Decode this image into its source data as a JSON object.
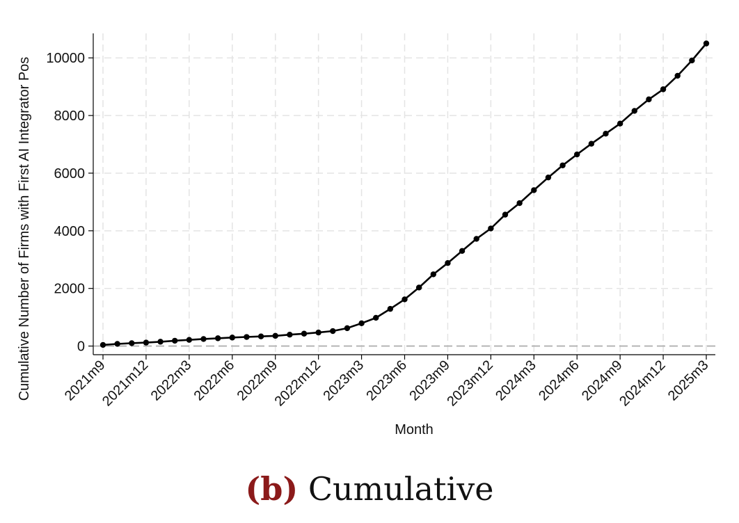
{
  "chart_data": {
    "type": "line",
    "title": "",
    "xlabel": "Month",
    "ylabel": "Cumulative Number of Firms with First AI Integrator Pos",
    "ylim": [
      -300,
      10850
    ],
    "yticks": [
      0,
      2000,
      4000,
      6000,
      8000,
      10000
    ],
    "reference_line": {
      "y": 0,
      "style": "dashed",
      "color": "#b0b0b0"
    },
    "grid": true,
    "legend": "none",
    "line_color": "#000000",
    "x": [
      "2021m9",
      "2021m10",
      "2021m11",
      "2021m12",
      "2022m1",
      "2022m2",
      "2022m3",
      "2022m4",
      "2022m5",
      "2022m6",
      "2022m7",
      "2022m8",
      "2022m9",
      "2022m10",
      "2022m11",
      "2022m12",
      "2023m1",
      "2023m2",
      "2023m3",
      "2023m4",
      "2023m5",
      "2023m6",
      "2023m7",
      "2023m8",
      "2023m9",
      "2023m10",
      "2023m11",
      "2023m12",
      "2024m1",
      "2024m2",
      "2024m3",
      "2024m4",
      "2024m5",
      "2024m6",
      "2024m7",
      "2024m8",
      "2024m9",
      "2024m10",
      "2024m11",
      "2024m12",
      "2025m1",
      "2025m2",
      "2025m3"
    ],
    "x_tick_labels": [
      "2021m9",
      "2021m12",
      "2022m3",
      "2022m6",
      "2022m9",
      "2022m12",
      "2023m3",
      "2023m6",
      "2023m9",
      "2023m12",
      "2024m3",
      "2024m6",
      "2024m9",
      "2024m12",
      "2025m3"
    ],
    "series": [
      {
        "values": [
          40,
          75,
          100,
          120,
          150,
          185,
          215,
          245,
          270,
          295,
          315,
          335,
          355,
          395,
          430,
          470,
          520,
          620,
          790,
          980,
          1290,
          1620,
          2030,
          2490,
          2880,
          3300,
          3720,
          4080,
          4560,
          4960,
          5410,
          5850,
          6270,
          6650,
          7020,
          7370,
          7720,
          8160,
          8560,
          8910,
          9380,
          9910,
          10500
        ]
      }
    ]
  },
  "caption": {
    "label": "(b)",
    "text": "Cumulative"
  }
}
